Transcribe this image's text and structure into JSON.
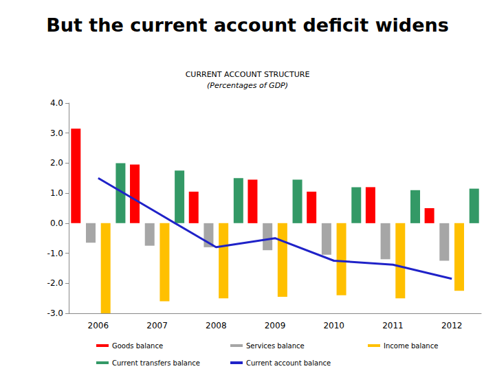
{
  "slide_title": "But the current account deficit widens",
  "chart_data": {
    "type": "bar",
    "title": "CURRENT ACCOUNT STRUCTURE",
    "subtitle": "(Percentages of GDP)",
    "categories": [
      "2006",
      "2007",
      "2008",
      "2009",
      "2010",
      "2011",
      "2012"
    ],
    "series": [
      {
        "name": "Goods balance",
        "type": "bar",
        "color": "#ff0000",
        "values": [
          3.15,
          1.95,
          1.05,
          1.45,
          1.05,
          1.2,
          0.5
        ]
      },
      {
        "name": "Services balance",
        "type": "bar",
        "color": "#a6a6a6",
        "values": [
          -0.65,
          -0.75,
          -0.8,
          -0.9,
          -1.05,
          -1.2,
          -1.25
        ]
      },
      {
        "name": "Income balance",
        "type": "bar",
        "color": "#ffc000",
        "values": [
          -3.0,
          -2.6,
          -2.5,
          -2.45,
          -2.4,
          -2.5,
          -2.25
        ]
      },
      {
        "name": "Current transfers balance",
        "type": "bar",
        "color": "#339966",
        "values": [
          2.0,
          1.75,
          1.5,
          1.45,
          1.2,
          1.1,
          1.15
        ]
      },
      {
        "name": "Current account balance",
        "type": "line",
        "color": "#1f22c8",
        "values": [
          1.5,
          0.35,
          -0.8,
          -0.5,
          -1.25,
          -1.38,
          -1.85
        ]
      }
    ],
    "ylim": [
      -3,
      4
    ],
    "yticks": [
      {
        "value": -3,
        "label": "-3.0"
      },
      {
        "value": -2,
        "label": "-2.0"
      },
      {
        "value": -1,
        "label": "-1.0"
      },
      {
        "value": 0,
        "label": "0.0"
      },
      {
        "value": 1,
        "label": "1.0"
      },
      {
        "value": 2,
        "label": "2.0"
      },
      {
        "value": 3,
        "label": "3.0"
      },
      {
        "value": 4,
        "label": "4.0"
      }
    ],
    "grid": false,
    "legend": "bottom"
  }
}
